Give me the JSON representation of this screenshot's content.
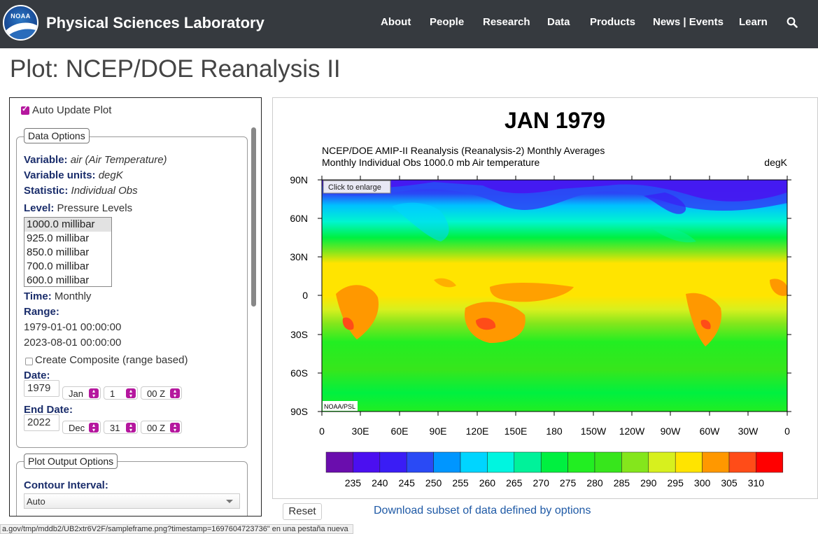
{
  "header": {
    "logo_text": "NOAA",
    "site_title": "Physical Sciences Laboratory",
    "nav": [
      "About",
      "People",
      "Research",
      "Data",
      "Products",
      "News | Events",
      "Learn"
    ],
    "search_icon": "search-icon"
  },
  "page_title": "Plot: NCEP/DOE Reanalysis II",
  "panel": {
    "auto_update_label": "Auto Update Plot",
    "auto_update_checked": true,
    "data_options_legend": "Data Options",
    "variable_key": "Variable:",
    "variable_val": "air (Air Temperature)",
    "units_key": "Variable units:",
    "units_val": "degK",
    "statistic_key": "Statistic:",
    "statistic_val": "Individual Obs",
    "level_key": "Level:",
    "level_val": "Pressure Levels",
    "levels": [
      "1000.0 millibar",
      "925.0 millibar",
      "850.0 millibar",
      "700.0 millibar",
      "600.0 millibar"
    ],
    "time_key": "Time:",
    "time_val": "Monthly",
    "range_key": "Range:",
    "range_start": "1979-01-01 00:00:00",
    "range_end": "2023-08-01 00:00:00",
    "composite_label": "Create Composite (range based)",
    "date_key": "Date:",
    "date_year": "1979",
    "date_month": "Jan",
    "date_day": "1",
    "date_hour": "00 Z",
    "end_date_key": "End Date:",
    "end_year": "2022",
    "end_month": "Dec",
    "end_day": "31",
    "end_hour": "00 Z",
    "plot_options_legend": "Plot Output Options",
    "contour_key": "Contour Interval:",
    "contour_val": "Auto"
  },
  "plot": {
    "main_title": "JAN 1979",
    "subtitle1": "NCEP/DOE AMIP-II Reanalysis (Reanalysis-2) Monthly Averages",
    "subtitle2": "Monthly Individual Obs 1000.0 mb Air temperature",
    "units": "degK",
    "enlarge_label": "Click to enlarge",
    "credit": "NOAA/PSL",
    "lat_labels": [
      "90N",
      "60N",
      "30N",
      "0",
      "30S",
      "60S",
      "90S"
    ],
    "lon_labels": [
      "0",
      "30E",
      "60E",
      "90E",
      "120E",
      "150E",
      "180",
      "150W",
      "120W",
      "90W",
      "60W",
      "30W",
      "0"
    ],
    "colorbar_values": [
      "235",
      "240",
      "245",
      "250",
      "255",
      "260",
      "265",
      "270",
      "275",
      "280",
      "285",
      "290",
      "295",
      "300",
      "305",
      "310"
    ],
    "colorbar_colors": [
      "#6a0dad",
      "#4b0ff0",
      "#3a1df5",
      "#2a4af5",
      "#0096ff",
      "#00d5ff",
      "#00f5e0",
      "#00f29a",
      "#00f040",
      "#22ee22",
      "#37e61c",
      "#84e61c",
      "#d7f01e",
      "#ffe400",
      "#ff9800",
      "#ff4c18",
      "#ff0000"
    ]
  },
  "reset_label": "Reset",
  "download_label": "Download subset of data defined by options",
  "status_url": "a.gov/tmp/mddb2/UB2xtr6V2F/sampleframe.png?timestamp=1697604723736\" en una pestaña nueva"
}
